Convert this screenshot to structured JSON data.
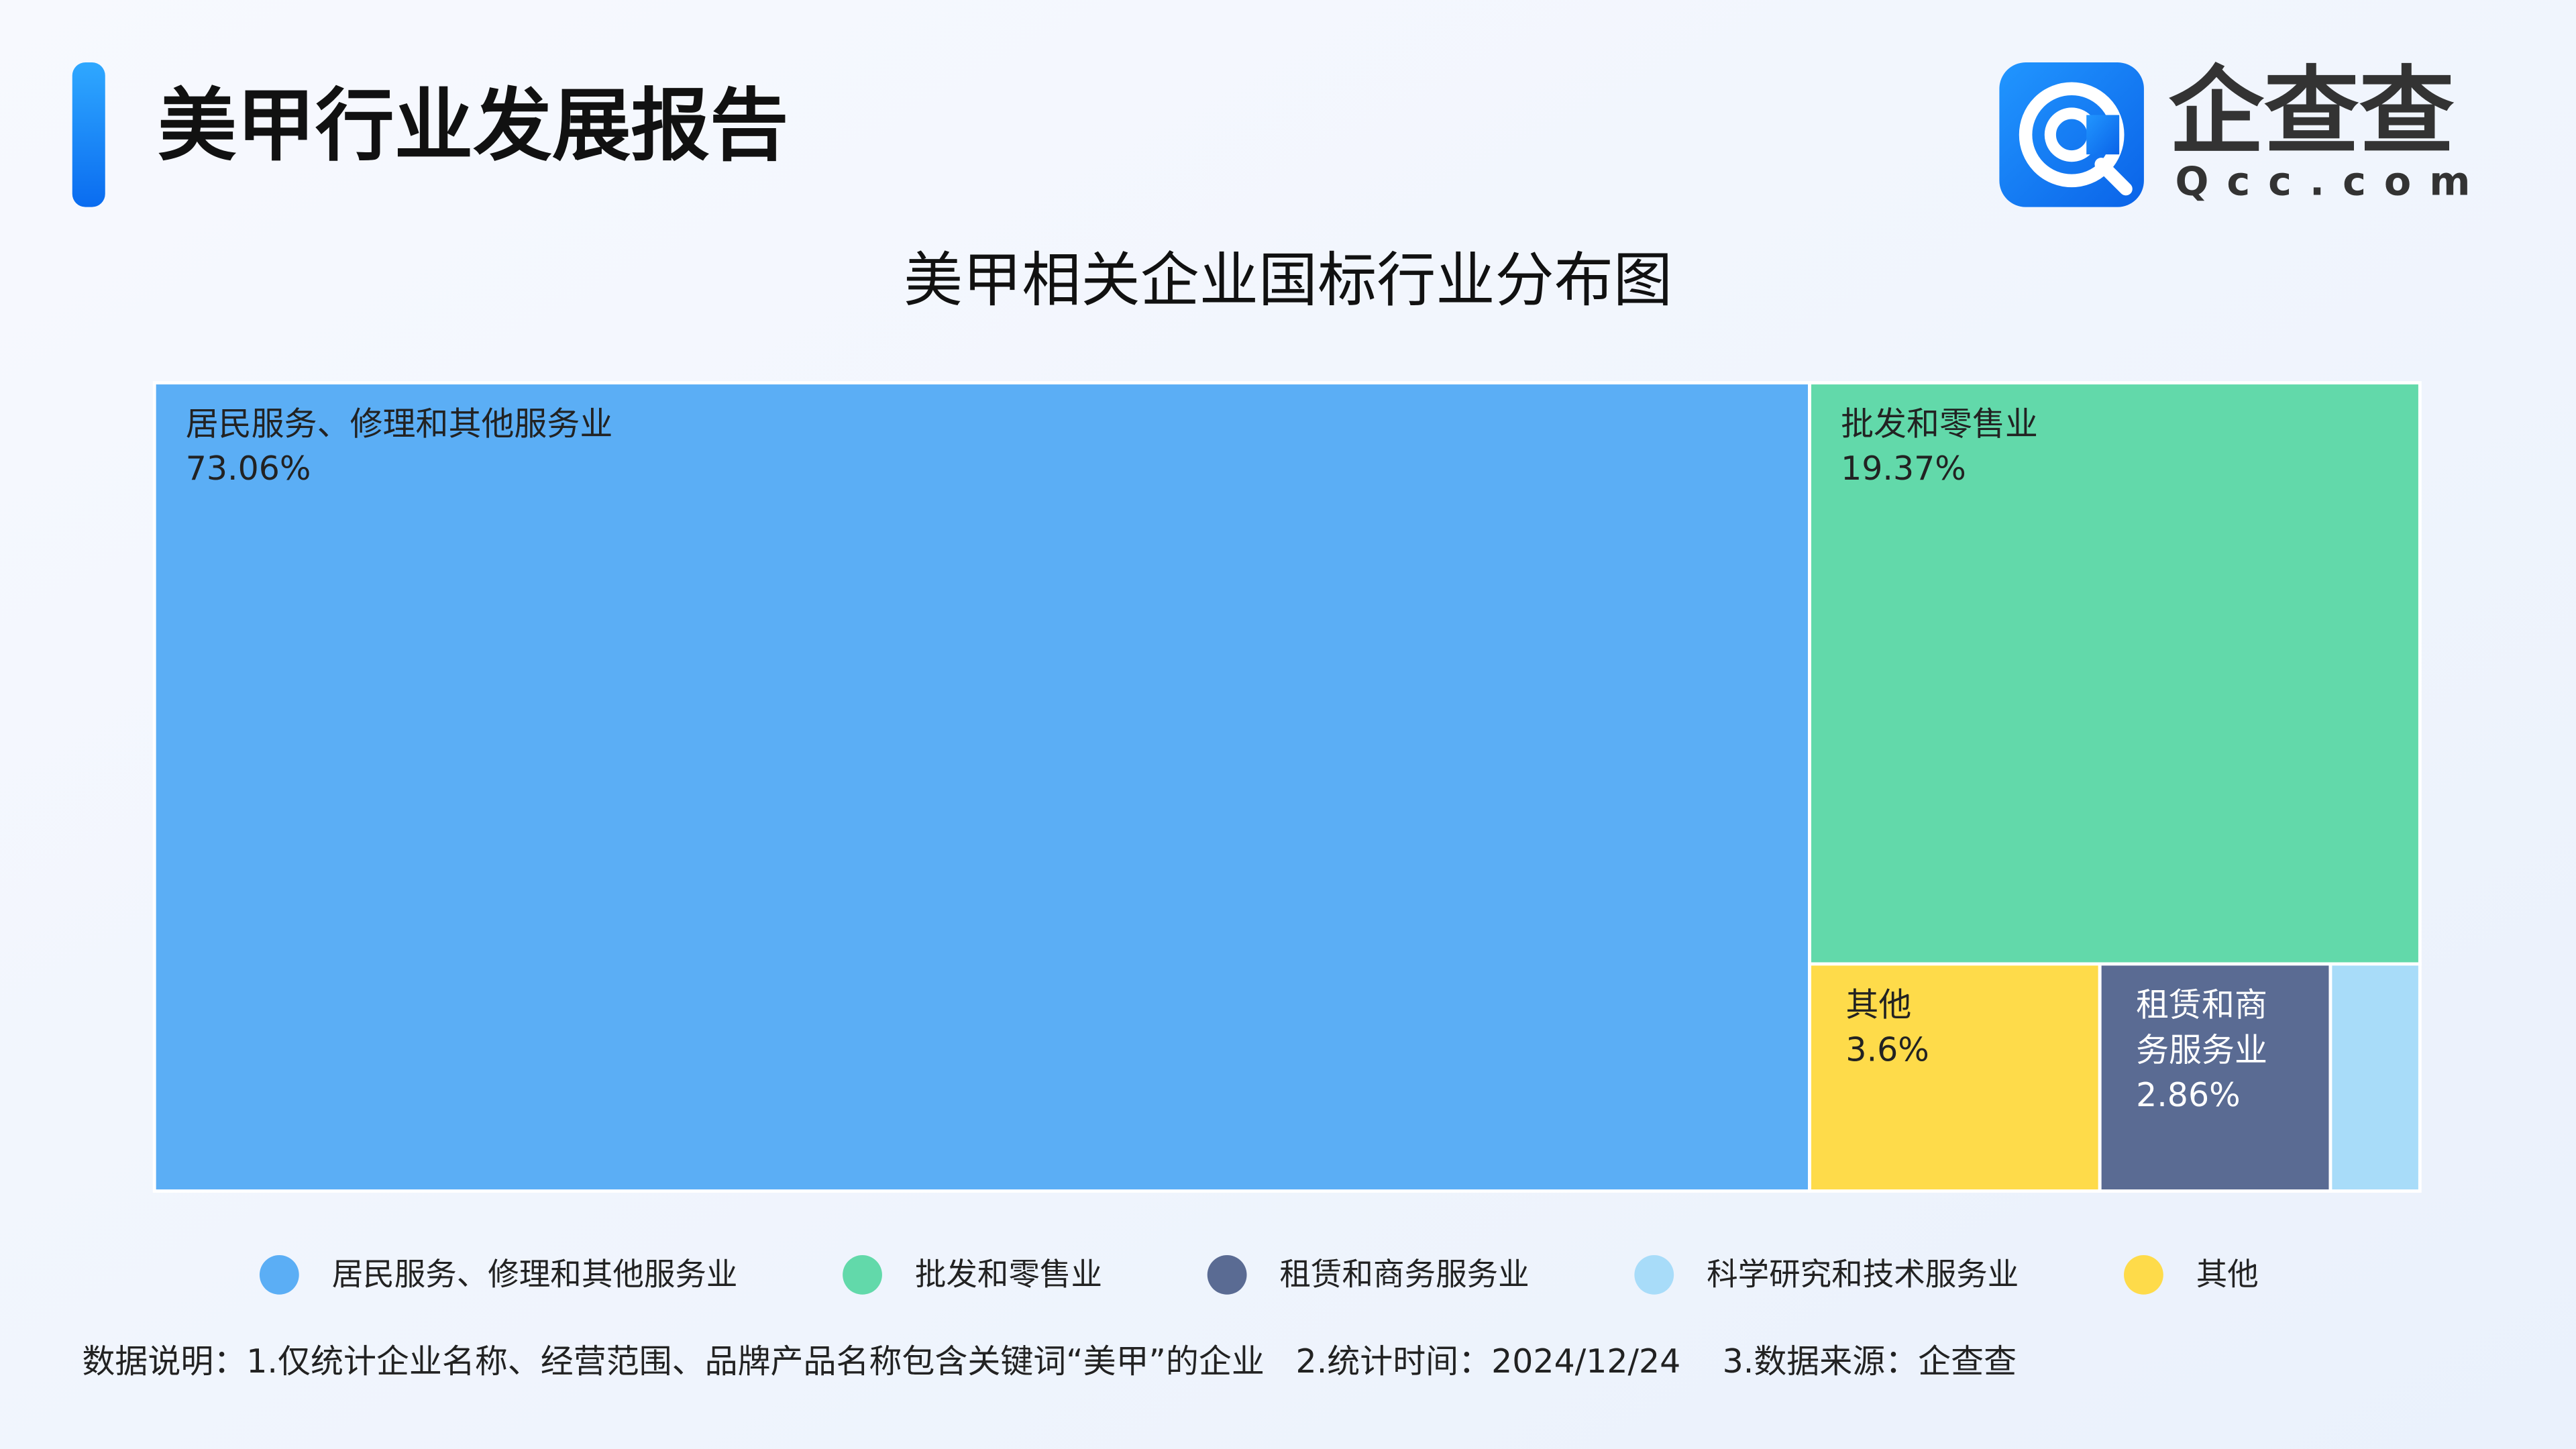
{
  "header": {
    "title": "美甲行业发展报告",
    "logo_name": "企查查",
    "logo_domain": "Qcc.com"
  },
  "chart_data": {
    "type": "treemap",
    "title": "美甲相关企业国标行业分布图",
    "categories": [
      "居民服务、修理和其他服务业",
      "批发和零售业",
      "租赁和商务服务业",
      "科学研究和技术服务业",
      "其他"
    ],
    "values": [
      73.06,
      19.37,
      2.86,
      1.11,
      3.6
    ],
    "value_labels": [
      "73.06%",
      "19.37%",
      "2.86%",
      null,
      "3.6%"
    ],
    "colors": [
      "#5baef5",
      "#62d9aa",
      "#5a6b93",
      "#a8dcf9",
      "#fedb4a"
    ],
    "legend": "bottom"
  },
  "footnote": "数据说明：1.仅统计企业名称、经营范围、品牌产品名称包含关键词“美甲”的企业   2.统计时间：2024/12/24    3.数据来源：企查查"
}
